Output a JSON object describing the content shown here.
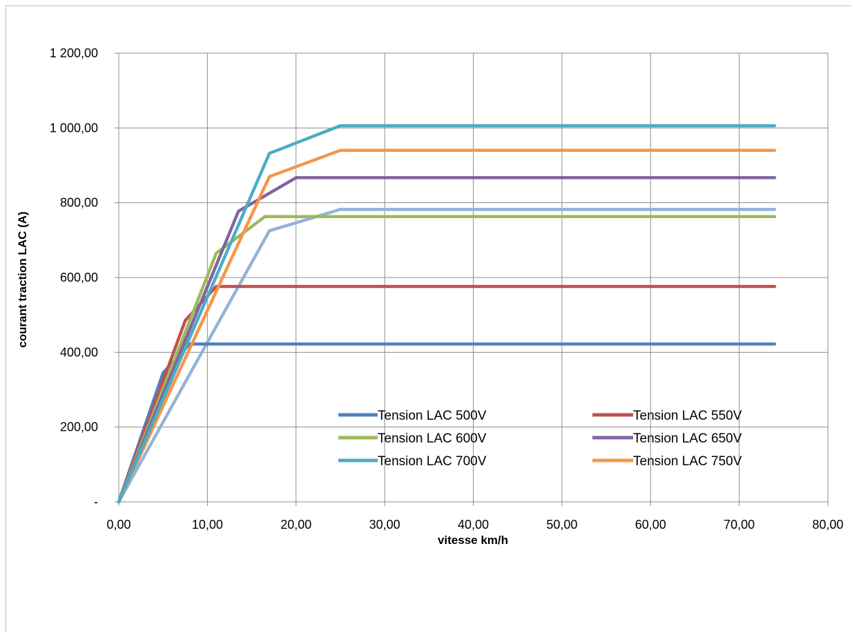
{
  "chart_data": {
    "type": "line",
    "title": "",
    "xlabel": "vitesse km/h",
    "ylabel": "courant traction LAC (A)",
    "xlim": [
      0,
      80
    ],
    "ylim": [
      0,
      1200
    ],
    "x_ticks": [
      {
        "value": 0,
        "label": "0,00"
      },
      {
        "value": 10,
        "label": "10,00"
      },
      {
        "value": 20,
        "label": "20,00"
      },
      {
        "value": 30,
        "label": "30,00"
      },
      {
        "value": 40,
        "label": "40,00"
      },
      {
        "value": 50,
        "label": "50,00"
      },
      {
        "value": 60,
        "label": "60,00"
      },
      {
        "value": 70,
        "label": "70,00"
      },
      {
        "value": 80,
        "label": "80,00"
      }
    ],
    "y_ticks": [
      {
        "value": 0,
        "label": "-"
      },
      {
        "value": 200,
        "label": "200,00"
      },
      {
        "value": 400,
        "label": "400,00"
      },
      {
        "value": 600,
        "label": "600,00"
      },
      {
        "value": 800,
        "label": "800,00"
      },
      {
        "value": 1000,
        "label": "1 000,00"
      },
      {
        "value": 1200,
        "label": "1 200,00"
      }
    ],
    "grid": true,
    "legend_position": "lower-right",
    "series": [
      {
        "name": "Tension LAC 500V",
        "color": "#4f81bd",
        "points": [
          [
            0,
            0
          ],
          [
            5,
            345
          ],
          [
            8,
            422
          ],
          [
            74,
            422
          ]
        ]
      },
      {
        "name": "Tension LAC 550V",
        "color": "#c0504d",
        "points": [
          [
            0,
            0
          ],
          [
            7.5,
            485
          ],
          [
            11,
            576
          ],
          [
            74,
            576
          ]
        ]
      },
      {
        "name": "Tension LAC 600V",
        "color": "#9bbb59",
        "points": [
          [
            0,
            0
          ],
          [
            11,
            665
          ],
          [
            16.5,
            763
          ],
          [
            74,
            763
          ]
        ]
      },
      {
        "name": "Tension LAC 650V",
        "color": "#8064a2",
        "points": [
          [
            0,
            0
          ],
          [
            13.5,
            777
          ],
          [
            20,
            867
          ],
          [
            74,
            867
          ]
        ]
      },
      {
        "name": "Tension LAC 700V",
        "color": "#4bacc6",
        "points": [
          [
            0,
            0
          ],
          [
            17,
            932
          ],
          [
            25,
            1006
          ],
          [
            74,
            1006
          ]
        ]
      },
      {
        "name": "Tension LAC 750V",
        "color": "#f79646",
        "points": [
          [
            0,
            0
          ],
          [
            17,
            870
          ],
          [
            25,
            940
          ],
          [
            74,
            940
          ]
        ]
      },
      {
        "color": "#95b3d7",
        "points": [
          [
            0,
            0
          ],
          [
            17,
            725
          ],
          [
            25,
            782
          ],
          [
            74,
            782
          ]
        ]
      }
    ]
  }
}
